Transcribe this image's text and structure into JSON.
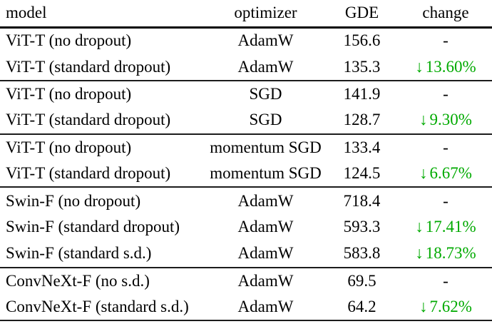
{
  "table": {
    "columns": [
      "model",
      "optimizer",
      "GDE",
      "change"
    ],
    "rows": [
      {
        "model": "ViT-T (no dropout)",
        "optimizer": "AdamW",
        "gde": "156.6",
        "arrow": "",
        "change": "-"
      },
      {
        "model": "ViT-T (standard dropout)",
        "optimizer": "AdamW",
        "gde": "135.3",
        "arrow": "↓",
        "change": "13.60%"
      },
      {
        "model": "ViT-T (no dropout)",
        "optimizer": "SGD",
        "gde": "141.9",
        "arrow": "",
        "change": "-"
      },
      {
        "model": "ViT-T (standard dropout)",
        "optimizer": "SGD",
        "gde": "128.7",
        "arrow": "↓",
        "change": "9.30%"
      },
      {
        "model": "ViT-T (no dropout)",
        "optimizer": "momentum SGD",
        "gde": "133.4",
        "arrow": "",
        "change": "-"
      },
      {
        "model": "ViT-T (standard dropout)",
        "optimizer": "momentum SGD",
        "gde": "124.5",
        "arrow": "↓",
        "change": "6.67%"
      },
      {
        "model": "Swin-F (no dropout)",
        "optimizer": "AdamW",
        "gde": "718.4",
        "arrow": "",
        "change": "-"
      },
      {
        "model": "Swin-F (standard dropout)",
        "optimizer": "AdamW",
        "gde": "593.3",
        "arrow": "↓",
        "change": "17.41%"
      },
      {
        "model": "Swin-F (standard s.d.)",
        "optimizer": "AdamW",
        "gde": "583.8",
        "arrow": "↓",
        "change": "18.73%"
      },
      {
        "model": "ConvNeXt-F (no s.d.)",
        "optimizer": "AdamW",
        "gde": "69.5",
        "arrow": "",
        "change": "-"
      },
      {
        "model": "ConvNeXt-F (standard s.d.)",
        "optimizer": "AdamW",
        "gde": "64.2",
        "arrow": "↓",
        "change": "7.62%"
      }
    ],
    "colors": {
      "decrease_green": "#00aa00",
      "rule": "#1c1c1c",
      "header_rule": "#000000",
      "text": "#000000",
      "background": "#ffffff"
    }
  }
}
